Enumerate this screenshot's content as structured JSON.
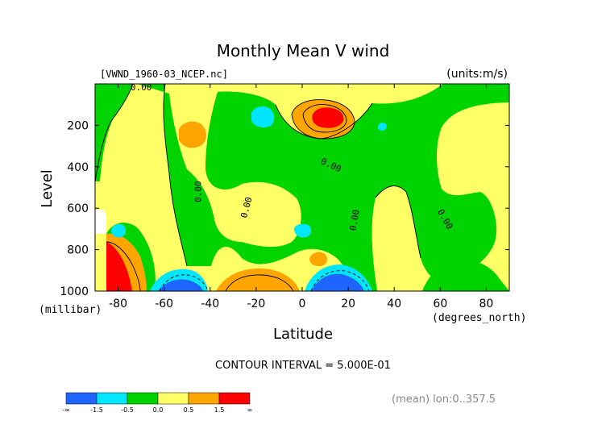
{
  "chart_data": {
    "type": "contour",
    "title": "Monthly Mean V wind",
    "source_label": "[VWND_1960-03_NCEP.nc]",
    "units_label": "(units:m/s)",
    "xlabel": "Latitude",
    "x_units_label": "(degrees_north)",
    "ylabel": "Level",
    "y_units_label": "(millibar)",
    "xlim": [
      -90,
      90
    ],
    "ylim": [
      1000,
      0
    ],
    "x_ticks": [
      {
        "value": -80,
        "label": "-80"
      },
      {
        "value": -60,
        "label": "-60"
      },
      {
        "value": -40,
        "label": "-40"
      },
      {
        "value": -20,
        "label": "-20"
      },
      {
        "value": 0,
        "label": "0"
      },
      {
        "value": 20,
        "label": "20"
      },
      {
        "value": 40,
        "label": "40"
      },
      {
        "value": 60,
        "label": "60"
      },
      {
        "value": 80,
        "label": "80"
      }
    ],
    "y_ticks": [
      {
        "value": 200,
        "label": "200"
      },
      {
        "value": 400,
        "label": "400"
      },
      {
        "value": 600,
        "label": "600"
      },
      {
        "value": 800,
        "label": "800"
      },
      {
        "value": 1000,
        "label": "1000"
      }
    ],
    "contour_interval_label": "CONTOUR INTERVAL = 5.000E-01",
    "footer_label": "(mean) lon:0..357.5",
    "contour_labels": [
      {
        "text": "0.00",
        "x": -70,
        "y": 0,
        "rotation": 0
      },
      {
        "text": "0.00",
        "x": 12,
        "y": 405,
        "rotation": 25
      },
      {
        "text": "0.00",
        "x": -44,
        "y": 520,
        "rotation": -90
      },
      {
        "text": "0.00",
        "x": -23,
        "y": 600,
        "rotation": -75
      },
      {
        "text": "0.00",
        "x": 24,
        "y": 660,
        "rotation": -80
      },
      {
        "text": "0.00",
        "x": 61,
        "y": 660,
        "rotation": 60
      }
    ],
    "colorbar": {
      "levels": [
        "-∞",
        "-1.5",
        "-0.5",
        "0.0",
        "0.5",
        "1.5",
        "∞"
      ],
      "colors": [
        "#1e64ff",
        "#00e6ff",
        "#00d400",
        "#ffff66",
        "#ffa500",
        "#ff0000"
      ]
    },
    "level_colors": {
      "neg_strong": "#1e64ff",
      "neg_weak": "#00e6ff",
      "near_zero": "#00d400",
      "pos_weak": "#ffff66",
      "pos_mid": "#ffa500",
      "pos_strong": "#ff0000"
    }
  }
}
